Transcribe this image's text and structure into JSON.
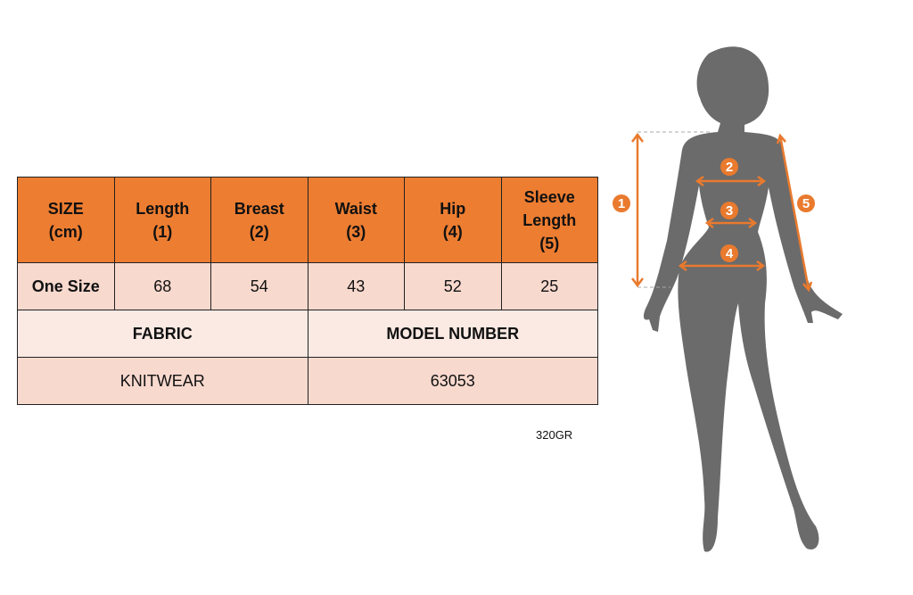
{
  "table": {
    "headers": [
      [
        "SIZE",
        "(cm)"
      ],
      [
        "Length",
        "(1)"
      ],
      [
        "Breast",
        "(2)"
      ],
      [
        "Waist",
        "(3)"
      ],
      [
        "Hip",
        "(4)"
      ],
      [
        "Sleeve",
        "Length",
        "(5)"
      ]
    ],
    "row": {
      "label": "One Size",
      "values": [
        "68",
        "54",
        "43",
        "52",
        "25"
      ]
    },
    "info_headers": [
      "FABRIC",
      "MODEL NUMBER"
    ],
    "info_values": [
      "KNITWEAR",
      "63053"
    ]
  },
  "note": "320GR",
  "figure": {
    "markers": [
      "1",
      "2",
      "3",
      "4",
      "5"
    ],
    "accent_color": "#E97A2E",
    "silhouette_color": "#6B6B6B"
  },
  "colors": {
    "header": "#ED7D31",
    "row": "#F8D9CE",
    "info_header_row": "#FBE9E3"
  }
}
